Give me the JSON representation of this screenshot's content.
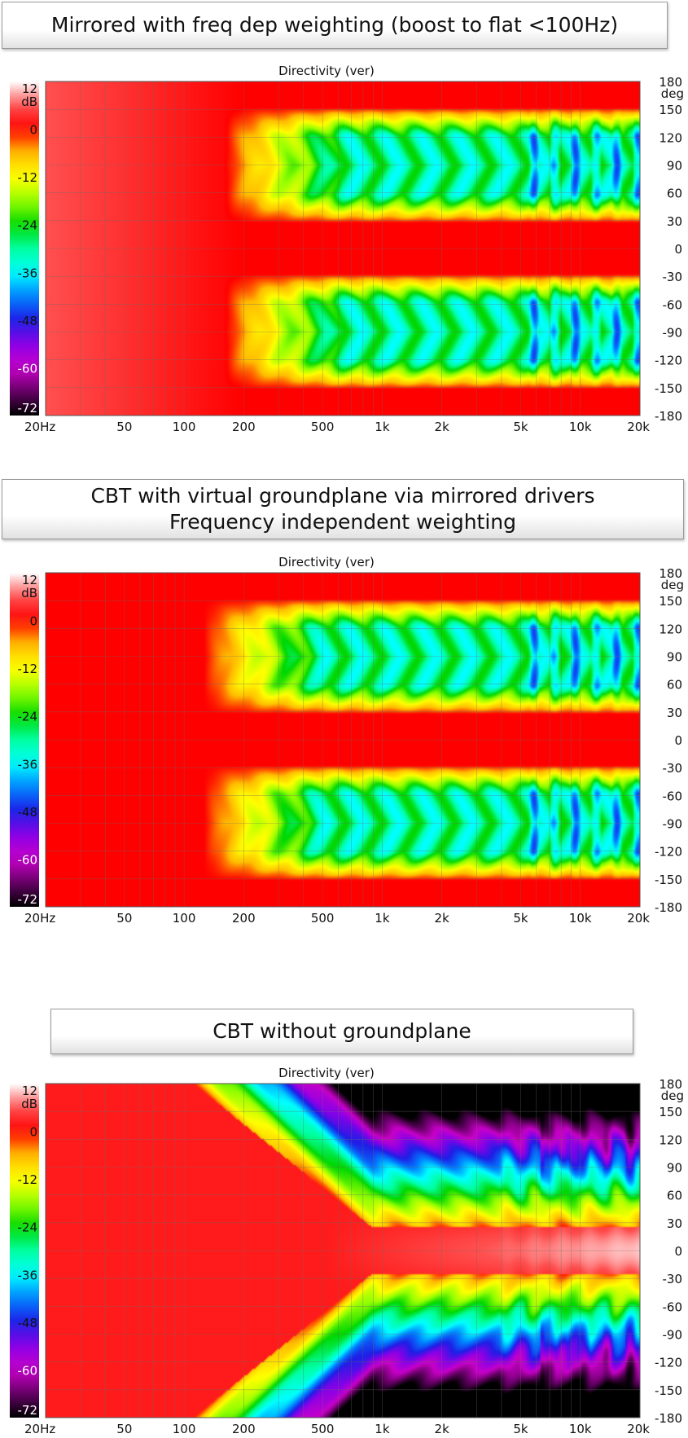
{
  "captions": [
    {
      "lines": [
        "Mirrored with freq dep weighting (boost to flat <100Hz)"
      ]
    },
    {
      "lines": [
        "CBT with virtual groundplane via mirrored drivers",
        "Frequency independent weighting"
      ]
    },
    {
      "lines": [
        "CBT without groundplane"
      ]
    }
  ],
  "chart_data": [
    {
      "type": "heatmap",
      "title": "Directivity (ver)",
      "variant": "mirrored-freq-dep",
      "x_range_hz": [
        20,
        20000
      ],
      "x_scale": "log",
      "x_ticks": [
        "20Hz",
        "50",
        "100",
        "200",
        "500",
        "1k",
        "2k",
        "5k",
        "10k",
        "20k"
      ],
      "x_tick_values": [
        20,
        50,
        100,
        200,
        500,
        1000,
        2000,
        5000,
        10000,
        20000
      ],
      "y_range_deg": [
        -180,
        180
      ],
      "y_ticks": [
        "180",
        "150",
        "120",
        "90",
        "60",
        "30",
        "0",
        "-30",
        "-60",
        "-90",
        "-120",
        "-150",
        "-180"
      ],
      "y_unit": "deg",
      "colorbar_ticks": [
        "12",
        "0",
        "-12",
        "-24",
        "-36",
        "-48",
        "-60",
        "-72"
      ],
      "colorbar_unit": "dB",
      "colorbar_range_db": [
        -72,
        12
      ],
      "grid": true
    },
    {
      "type": "heatmap",
      "title": "Directivity (ver)",
      "variant": "mirrored-freq-indep",
      "x_range_hz": [
        20,
        20000
      ],
      "x_scale": "log",
      "x_ticks": [
        "20Hz",
        "50",
        "100",
        "200",
        "500",
        "1k",
        "2k",
        "5k",
        "10k",
        "20k"
      ],
      "x_tick_values": [
        20,
        50,
        100,
        200,
        500,
        1000,
        2000,
        5000,
        10000,
        20000
      ],
      "y_range_deg": [
        -180,
        180
      ],
      "y_ticks": [
        "180",
        "150",
        "120",
        "90",
        "60",
        "30",
        "0",
        "-30",
        "-60",
        "-90",
        "-120",
        "-150",
        "-180"
      ],
      "y_unit": "deg",
      "colorbar_ticks": [
        "12",
        "0",
        "-12",
        "-24",
        "-36",
        "-48",
        "-60",
        "-72"
      ],
      "colorbar_unit": "dB",
      "colorbar_range_db": [
        -72,
        12
      ],
      "grid": true
    },
    {
      "type": "heatmap",
      "title": "Directivity (ver)",
      "variant": "no-groundplane",
      "x_range_hz": [
        20,
        20000
      ],
      "x_scale": "log",
      "x_ticks": [
        "20Hz",
        "50",
        "100",
        "200",
        "500",
        "1k",
        "2k",
        "5k",
        "10k",
        "20k"
      ],
      "x_tick_values": [
        20,
        50,
        100,
        200,
        500,
        1000,
        2000,
        5000,
        10000,
        20000
      ],
      "y_range_deg": [
        -180,
        180
      ],
      "y_ticks": [
        "180",
        "150",
        "120",
        "90",
        "60",
        "30",
        "0",
        "-30",
        "-60",
        "-90",
        "-120",
        "-150",
        "-180"
      ],
      "y_unit": "deg",
      "colorbar_ticks": [
        "12",
        "0",
        "-12",
        "-24",
        "-36",
        "-48",
        "-60",
        "-72"
      ],
      "colorbar_unit": "dB",
      "colorbar_range_db": [
        -72,
        12
      ],
      "grid": true
    }
  ]
}
